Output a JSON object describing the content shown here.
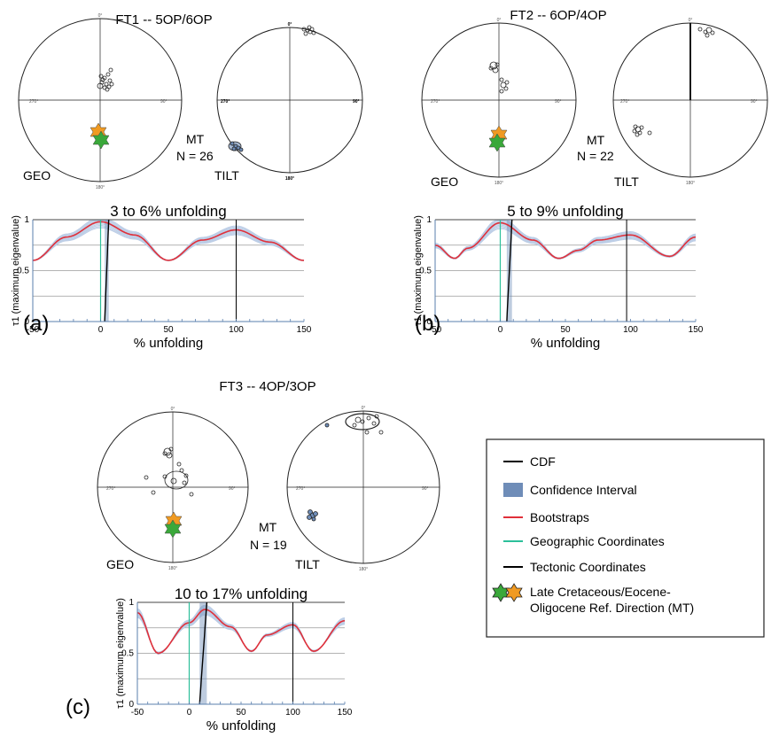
{
  "figure": {
    "ft1": {
      "title": "FT1 -- 5OP/6OP",
      "geo_label": "GEO",
      "tilt_label": "TILT",
      "mt_label": "MT",
      "n_label": "N = 26",
      "panel_label": "(a)"
    },
    "ft2": {
      "title": "FT2 -- 6OP/4OP",
      "geo_label": "GEO",
      "tilt_label": "TILT",
      "mt_label": "MT",
      "n_label": "N = 22",
      "panel_label": "(b)"
    },
    "ft3": {
      "title": "FT3 -- 4OP/3OP",
      "geo_label": "GEO",
      "tilt_label": "TILT",
      "mt_label": "MT",
      "n_label": "N = 19",
      "panel_label": "(c)"
    },
    "stereonet_directions": {
      "north": "0°",
      "east": "90°",
      "south": "180°",
      "west": "270°"
    }
  },
  "legend": {
    "items": [
      {
        "label": "CDF",
        "symbol": "line",
        "color": "#000000"
      },
      {
        "label": "Confidence Interval",
        "symbol": "box",
        "color": "#6f8db8"
      },
      {
        "label": "Bootstraps",
        "symbol": "line",
        "color": "#e0303a"
      },
      {
        "label": "Geographic Coordinates",
        "symbol": "line",
        "color": "#2cbf9a"
      },
      {
        "label": "Tectonic Coordinates",
        "symbol": "line",
        "color": "#000000"
      },
      {
        "label_line1": "Late Cretaceous/Eocene-",
        "label_line2": "Oligocene Ref. Direction (MT)",
        "symbol": "stars",
        "colors": [
          "#3aa83a",
          "#f09a22"
        ]
      }
    ]
  },
  "colors": {
    "cdf": "#000000",
    "confidence": "#6f8db8",
    "bootstrap_mean": "#e0303a",
    "bootstrap_lines": "#bccde6",
    "geographic": "#2cbf9a",
    "tectonic": "#000000",
    "star_green": "#3aa83a",
    "star_orange": "#f09a22",
    "grid": "#9a9a9a"
  },
  "chart_data": [
    {
      "type": "line",
      "title": "3 to 6% unfolding",
      "xlabel": "% unfolding",
      "ylabel": "τ1 (maximum eigenvalue)",
      "xlim": [
        -50,
        150
      ],
      "ylim": [
        0,
        1
      ],
      "xticks": [
        -50,
        0,
        50,
        100,
        150
      ],
      "yticks": [
        0,
        0.5,
        1
      ],
      "ytick_labels": [
        "0",
        "0.5",
        "1"
      ],
      "hgrid": [
        0.25,
        0.5,
        0.75,
        1
      ],
      "geographic_x": 0,
      "tectonic_x": 100,
      "confidence_interval": [
        3,
        6
      ],
      "series": [
        {
          "x": [
            -50,
            -25,
            0,
            25,
            50,
            75,
            100,
            125,
            150
          ],
          "values": [
            0.6,
            0.83,
            0.98,
            0.85,
            0.6,
            0.8,
            0.9,
            0.78,
            0.6
          ]
        }
      ]
    },
    {
      "type": "line",
      "title": "5 to 9% unfolding",
      "xlabel": "% unfolding",
      "ylabel": "τ1 (maximum eigenvalue)",
      "xlim": [
        -50,
        150
      ],
      "ylim": [
        0,
        1
      ],
      "xticks": [
        -50,
        0,
        50,
        100,
        150
      ],
      "yticks": [
        0,
        0.5,
        1
      ],
      "ytick_labels": [
        "0",
        "0.5",
        "1"
      ],
      "hgrid": [
        0.25,
        0.5,
        0.75,
        1
      ],
      "geographic_x": 0,
      "tectonic_x": 97,
      "confidence_interval": [
        5,
        9
      ],
      "series": [
        {
          "x": [
            -50,
            -35,
            -25,
            0,
            25,
            45,
            60,
            75,
            100,
            130,
            150
          ],
          "values": [
            0.75,
            0.62,
            0.72,
            0.97,
            0.8,
            0.62,
            0.7,
            0.8,
            0.85,
            0.64,
            0.83
          ]
        }
      ]
    },
    {
      "type": "line",
      "title": "10 to 17% unfolding",
      "xlabel": "% unfolding",
      "ylabel": "τ1 (maximum eigenvalue)",
      "xlim": [
        -50,
        150
      ],
      "ylim": [
        0,
        1
      ],
      "xticks": [
        -50,
        0,
        50,
        100,
        150
      ],
      "yticks": [
        0,
        0.5,
        1
      ],
      "ytick_labels": [
        "0",
        "0.5",
        "1"
      ],
      "hgrid": [
        0.25,
        0.5,
        0.75,
        1
      ],
      "geographic_x": 0,
      "tectonic_x": 100,
      "confidence_interval": [
        10,
        17
      ],
      "series": [
        {
          "x": [
            -50,
            -30,
            0,
            15,
            40,
            60,
            75,
            100,
            120,
            150
          ],
          "values": [
            0.9,
            0.5,
            0.8,
            0.93,
            0.76,
            0.52,
            0.68,
            0.78,
            0.52,
            0.82
          ]
        }
      ]
    }
  ]
}
